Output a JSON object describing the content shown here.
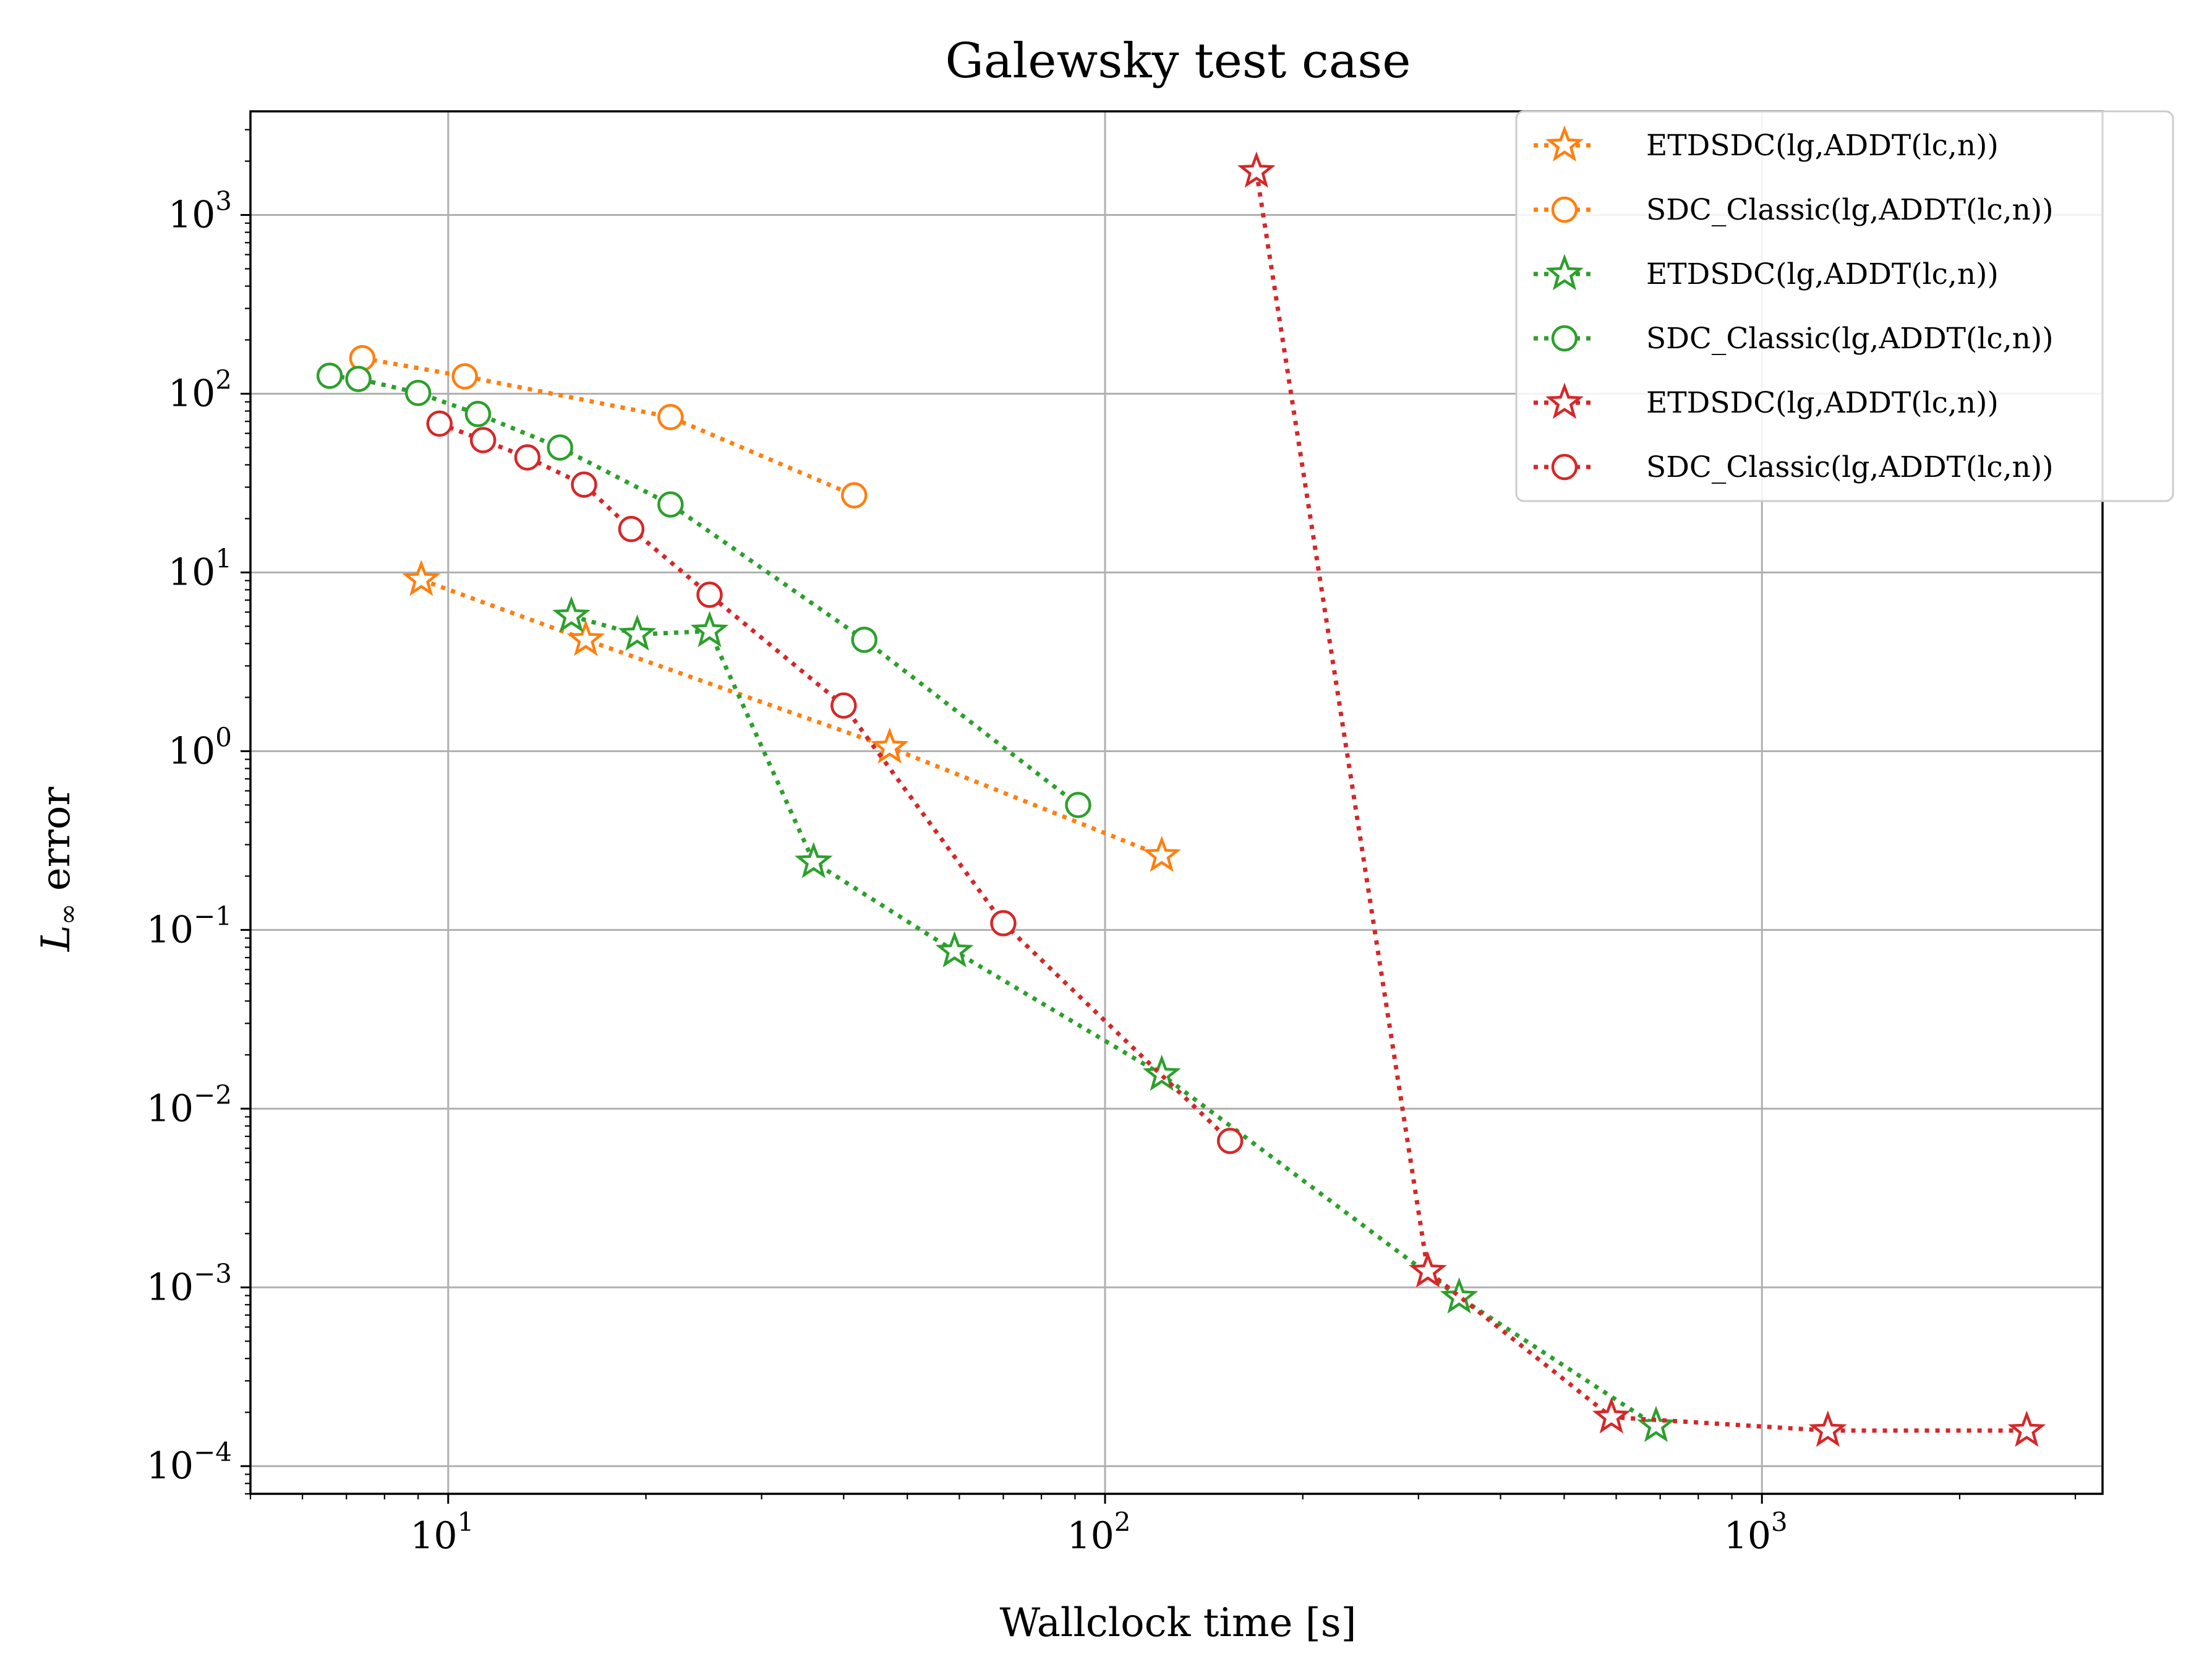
{
  "chart_data": {
    "type": "scatter",
    "title": "Galewsky test case",
    "xlabel": "Wallclock time [s]",
    "ylabel_prefix": "L",
    "ylabel_sub": "∞",
    "ylabel_suffix": " error",
    "xscale": "log",
    "yscale": "log",
    "xlim": [
      5,
      3300
    ],
    "ylim": [
      7e-05,
      3800
    ],
    "grid": true,
    "legend_position": "top-right",
    "x_ticks": [
      {
        "value": 10,
        "base": "10",
        "exp": "1"
      },
      {
        "value": 100,
        "base": "10",
        "exp": "2"
      },
      {
        "value": 1000,
        "base": "10",
        "exp": "3"
      }
    ],
    "y_ticks": [
      {
        "value": 0.0001,
        "base": "10",
        "exp": "−4"
      },
      {
        "value": 0.001,
        "base": "10",
        "exp": "−3"
      },
      {
        "value": 0.01,
        "base": "10",
        "exp": "−2"
      },
      {
        "value": 0.1,
        "base": "10",
        "exp": "−1"
      },
      {
        "value": 1,
        "base": "10",
        "exp": "0"
      },
      {
        "value": 10,
        "base": "10",
        "exp": "1"
      },
      {
        "value": 100,
        "base": "10",
        "exp": "2"
      },
      {
        "value": 1000,
        "base": "10",
        "exp": "3"
      }
    ],
    "series": [
      {
        "name": "ETDSDC(lg,ADDT(lc,n))",
        "color": "#ff7f0e",
        "marker": "star",
        "x": [
          9.1,
          16.2,
          47,
          122
        ],
        "y": [
          9.1,
          4.2,
          1.05,
          0.26
        ]
      },
      {
        "name": "SDC_Classic(lg,ADDT(lc,n))",
        "color": "#ff7f0e",
        "marker": "circle",
        "x": [
          7.4,
          10.6,
          21.8,
          41.5
        ],
        "y": [
          158,
          125,
          74,
          27
        ]
      },
      {
        "name": "ETDSDC(lg,ADDT(lc,n))",
        "color": "#2ca02c",
        "marker": "star",
        "x": [
          15.4,
          19.4,
          25,
          36,
          59,
          122,
          346,
          690
        ],
        "y": [
          5.7,
          4.5,
          4.7,
          0.24,
          0.076,
          0.0155,
          0.00088,
          0.000168
        ]
      },
      {
        "name": "SDC_Classic(lg,ADDT(lc,n))",
        "color": "#2ca02c",
        "marker": "circle",
        "x": [
          6.6,
          7.3,
          9.0,
          11.1,
          14.8,
          21.8,
          43,
          91
        ],
        "y": [
          126,
          121,
          101,
          77,
          50,
          24,
          4.2,
          0.5
        ]
      },
      {
        "name": "ETDSDC(lg,ADDT(lc,n))",
        "color": "#d62728",
        "marker": "star",
        "x": [
          170,
          310,
          590,
          1260,
          2530
        ],
        "y": [
          1750,
          0.00123,
          0.000188,
          0.000158,
          0.000158
        ]
      },
      {
        "name": "SDC_Classic(lg,ADDT(lc,n))",
        "color": "#d62728",
        "marker": "circle",
        "x": [
          9.7,
          11.3,
          13.2,
          16.1,
          19.0,
          25,
          40,
          70,
          155
        ],
        "y": [
          68,
          55,
          44,
          31,
          17.5,
          7.5,
          1.8,
          0.109,
          0.0066
        ]
      }
    ]
  }
}
